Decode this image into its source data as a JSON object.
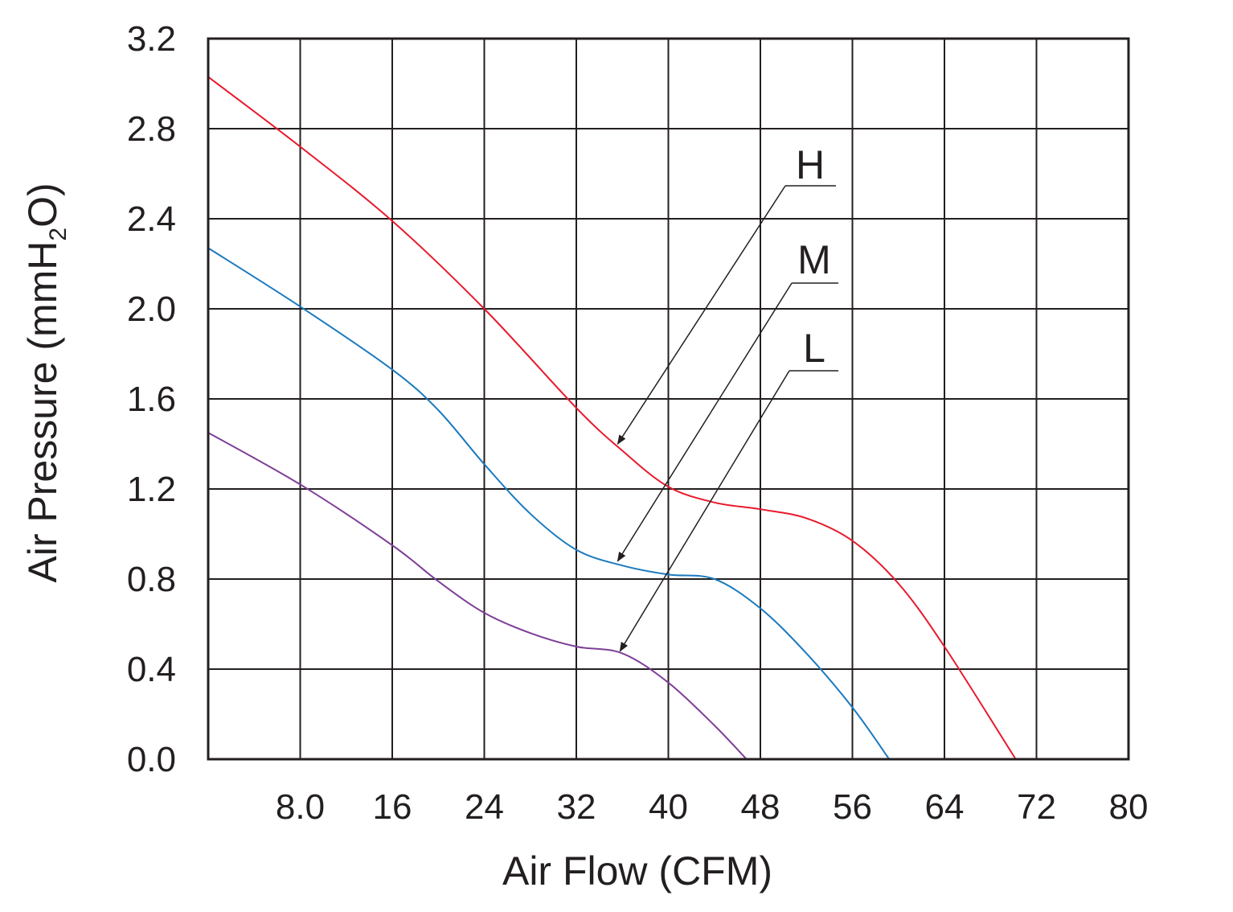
{
  "chart_data": {
    "type": "line",
    "xlabel": "Air Flow (CFM)",
    "ylabel_parts": [
      "Air Pressure (mmH",
      "2",
      "O)"
    ],
    "xlim": [
      0,
      80
    ],
    "ylim": [
      0,
      3.2
    ],
    "x_ticks": [
      8,
      16,
      24,
      32,
      40,
      48,
      56,
      64,
      72,
      80
    ],
    "x_tick_labels": [
      "8.0",
      "16",
      "24",
      "32",
      "40",
      "48",
      "56",
      "64",
      "72",
      "80"
    ],
    "y_ticks": [
      0,
      0.4,
      0.8,
      1.2,
      1.6,
      2.0,
      2.4,
      2.8,
      3.2
    ],
    "y_tick_labels": [
      "0.0",
      "0.4",
      "0.8",
      "1.2",
      "1.6",
      "2.0",
      "2.4",
      "2.8",
      "3.2"
    ],
    "grid": true,
    "series": [
      {
        "name": "H",
        "color": "#e8192c",
        "x": [
          0,
          8,
          16,
          24,
          32,
          36,
          40,
          44,
          48,
          52,
          56,
          60,
          64,
          70.2
        ],
        "y": [
          3.03,
          2.72,
          2.39,
          2.0,
          1.56,
          1.37,
          1.21,
          1.14,
          1.11,
          1.07,
          0.97,
          0.78,
          0.5,
          0.0
        ],
        "arrow_to": [
          35.6,
          1.4
        ]
      },
      {
        "name": "M",
        "color": "#1a7abf",
        "x": [
          0,
          8,
          16,
          20,
          24,
          28,
          32,
          36,
          40,
          44,
          48,
          52,
          56,
          59.2
        ],
        "y": [
          2.27,
          2.01,
          1.73,
          1.55,
          1.31,
          1.09,
          0.93,
          0.86,
          0.82,
          0.8,
          0.67,
          0.47,
          0.23,
          0.0
        ],
        "arrow_to": [
          35.6,
          0.88
        ]
      },
      {
        "name": "L",
        "color": "#7e3f98",
        "x": [
          0,
          8,
          16,
          20,
          24,
          28,
          32,
          36,
          40,
          44,
          46.8
        ],
        "y": [
          1.45,
          1.22,
          0.95,
          0.79,
          0.65,
          0.56,
          0.5,
          0.47,
          0.34,
          0.15,
          0.0
        ],
        "arrow_to": [
          35.8,
          0.48
        ]
      }
    ]
  }
}
